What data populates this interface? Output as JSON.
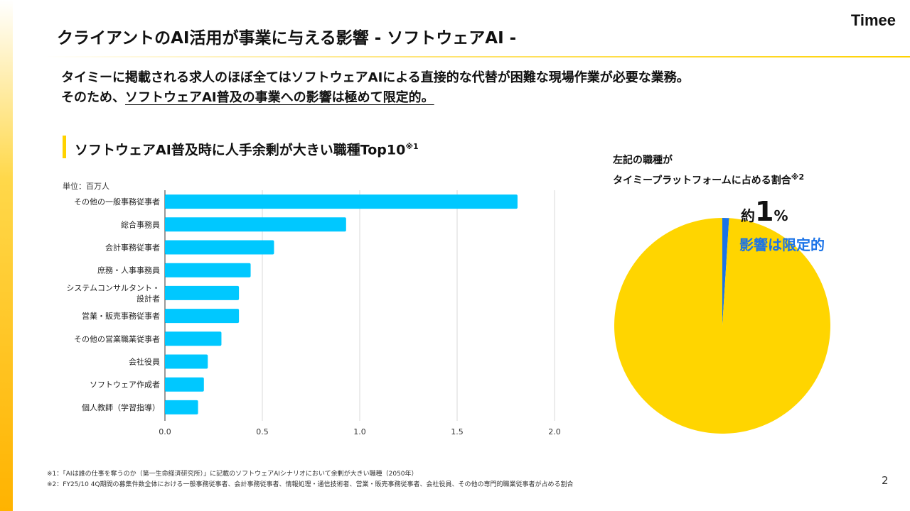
{
  "header": {
    "title": "クライアントのAI活用が事業に与える影響 - ソフトウェアAI -",
    "logo": "Timee"
  },
  "lead": {
    "line1": "タイミーに掲載される求人のほぼ全てはソフトウェアAIによる直接的な代替が困難な現場作業が必要な業務。",
    "line2_prefix": "そのため、",
    "line2_emph": "ソフトウェアAI普及の事業への影響は極めて限定的。"
  },
  "chart_data": [
    {
      "type": "bar",
      "orientation": "horizontal",
      "title": "ソフトウェアAI普及時に人手余剰が大きい職種Top10",
      "title_note": "※1",
      "unit_label": "単位：百万人",
      "categories": [
        "その他の一般事務従事者",
        "総合事務員",
        "会計事務従事者",
        "庶務・人事事務員",
        "システムコンサルタント・設計者",
        "営業・販売事務従事者",
        "その他の営業職業従事者",
        "会社役員",
        "ソフトウェア作成者",
        "個人教師（学習指導）"
      ],
      "values": [
        1.81,
        0.93,
        0.56,
        0.44,
        0.38,
        0.38,
        0.29,
        0.22,
        0.2,
        0.17
      ],
      "xlim": [
        0,
        2.0
      ],
      "xticks": [
        "0.0",
        "0.5",
        "1.0",
        "1.5",
        "2.0"
      ],
      "grid": true,
      "color": "#00c8ff"
    },
    {
      "type": "pie",
      "title_line1": "左記の職種が",
      "title_line2": "タイミープラットフォームに占める割合",
      "title_note": "※2",
      "slices": [
        {
          "value": 1,
          "color": "#1a73e8"
        },
        {
          "value": 99,
          "color": "#ffd500"
        }
      ],
      "annotation_prefix": "約",
      "annotation_value": "1",
      "annotation_unit": "%",
      "annotation_text": "影響は限定的"
    }
  ],
  "notes": [
    "※1：「AIは誰の仕事を奪うのか（第一生命経済研究所）」に記載のソフトウェアAIシナリオにおいて余剰が大きい職種（2050年）",
    "※2：FY25/10 4Q期間の募集件数全体における一般事務従事者、会計事務従事者、情報処理・通信技術者、営業・販売事務従事者、会社役員、その他の専門的職業従事者が占める割合"
  ],
  "page_number": "2"
}
